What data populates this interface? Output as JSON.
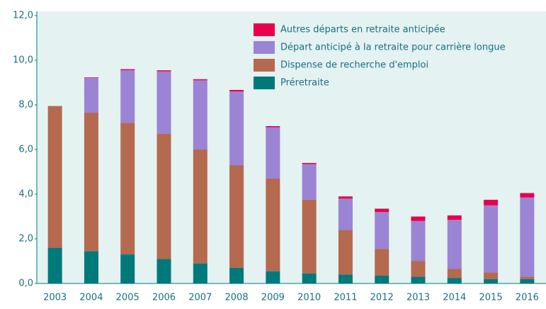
{
  "chart_data": {
    "type": "stacked_bar",
    "categories": [
      "2003",
      "2004",
      "2005",
      "2006",
      "2007",
      "2008",
      "2009",
      "2010",
      "2011",
      "2012",
      "2013",
      "2014",
      "2015",
      "2016"
    ],
    "series": [
      {
        "name": "Préretraite",
        "color": "#00797b",
        "values": [
          1.6,
          1.45,
          1.3,
          1.1,
          0.9,
          0.7,
          0.55,
          0.45,
          0.4,
          0.35,
          0.3,
          0.25,
          0.2,
          0.2
        ]
      },
      {
        "name": "Dispense de recherche d'emploi",
        "color": "#b5694e",
        "values": [
          6.35,
          6.2,
          5.9,
          5.6,
          5.1,
          4.6,
          4.15,
          3.3,
          2.0,
          1.2,
          0.7,
          0.4,
          0.3,
          0.1
        ]
      },
      {
        "name": "Départ anticipé à la retraite pour carrière longue",
        "color": "#9b84d4",
        "values": [
          0,
          1.55,
          2.35,
          2.8,
          3.1,
          3.3,
          2.3,
          1.6,
          1.4,
          1.65,
          1.8,
          2.2,
          3.0,
          3.55
        ]
      },
      {
        "name": "Autres départs en retraite anticipée",
        "color": "#e8004d",
        "values": [
          0,
          0.03,
          0.05,
          0.05,
          0.05,
          0.07,
          0.05,
          0.05,
          0.1,
          0.15,
          0.2,
          0.2,
          0.25,
          0.2
        ]
      }
    ],
    "ylim": [
      0,
      12
    ],
    "yticks": [
      {
        "value": 0,
        "label": "0,0"
      },
      {
        "value": 2,
        "label": "2,0"
      },
      {
        "value": 4,
        "label": "4,0"
      },
      {
        "value": 6,
        "label": "6,0"
      },
      {
        "value": 8,
        "label": "8,0"
      },
      {
        "value": 10,
        "label": "10,0"
      },
      {
        "value": 12,
        "label": "12,0"
      }
    ],
    "grid": false,
    "legend": "top-right"
  }
}
